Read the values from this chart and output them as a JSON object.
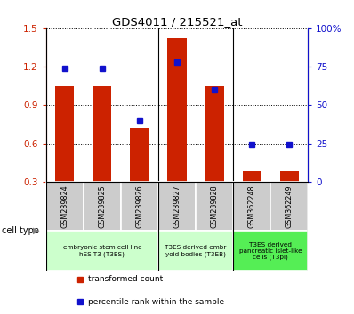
{
  "title": "GDS4011 / 215521_at",
  "samples": [
    "GSM239824",
    "GSM239825",
    "GSM239826",
    "GSM239827",
    "GSM239828",
    "GSM362248",
    "GSM362249"
  ],
  "transformed_count": [
    1.05,
    1.05,
    0.72,
    1.42,
    1.05,
    0.38,
    0.38
  ],
  "percentile_rank": [
    74,
    74,
    40,
    78,
    60,
    24,
    24
  ],
  "ylim_left": [
    0.3,
    1.5
  ],
  "ylim_right": [
    0,
    100
  ],
  "yticks_left": [
    0.3,
    0.6,
    0.9,
    1.2,
    1.5
  ],
  "yticks_right": [
    0,
    25,
    50,
    75,
    100
  ],
  "ytick_labels_right": [
    "0",
    "25",
    "50",
    "75",
    "100%"
  ],
  "bar_color": "#cc2200",
  "dot_color": "#1111cc",
  "groups": [
    {
      "label": "embryonic stem cell line\nhES-T3 (T3ES)",
      "start": 0,
      "end": 2,
      "color": "#ccffcc"
    },
    {
      "label": "T3ES derived embr\nyoid bodies (T3EB)",
      "start": 3,
      "end": 4,
      "color": "#ccffcc"
    },
    {
      "label": "T3ES derived\npancreatic islet-like\ncells (T3pi)",
      "start": 5,
      "end": 6,
      "color": "#55ee55"
    }
  ],
  "tick_label_bg": "#cccccc",
  "legend_red_label": "transformed count",
  "legend_blue_label": "percentile rank within the sample",
  "cell_type_label": "cell type",
  "bar_width": 0.5
}
